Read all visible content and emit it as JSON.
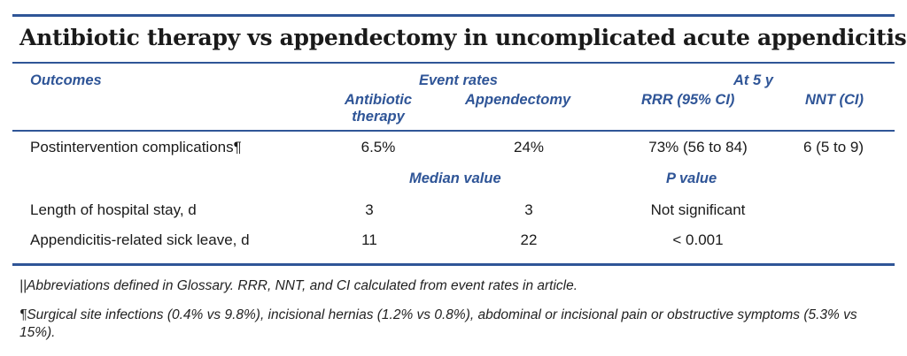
{
  "title": "Antibiotic therapy vs appendectomy in uncomplicated acute appendicitis||",
  "headers": {
    "outcomes": "Outcomes",
    "event_rates": "Event rates",
    "at_5y": "At 5 y",
    "antibiotic_line1": "Antibiotic",
    "antibiotic_line2": "therapy",
    "appendectomy": "Appendectomy",
    "rrr": "RRR (95% CI)",
    "nnt": "NNT (CI)",
    "median_value": "Median value",
    "p_value": "P value"
  },
  "rows": [
    {
      "outcome": "Postintervention complications¶",
      "antibiotic": "6.5%",
      "appendectomy": "24%",
      "rrr": "73% (56 to 84)",
      "nnt": "6 (5 to 9)"
    },
    {
      "outcome": "Length of hospital stay, d",
      "antibiotic": "3",
      "appendectomy": "3",
      "p": "Not significant"
    },
    {
      "outcome": "Appendicitis-related sick leave, d",
      "antibiotic": "11",
      "appendectomy": "22",
      "p": "< 0.001"
    }
  ],
  "footnotes": {
    "abbrev": "||Abbreviations defined in Glossary. RRR, NNT, and CI calculated from event rates in article.",
    "complications": "¶Surgical site infections (0.4% vs 9.8%), incisional hernias (1.2% vs 0.8%), abdominal or incisional pain or obstructive symptoms (5.3% vs 15%)."
  },
  "colors": {
    "accent": "#2f5597"
  }
}
